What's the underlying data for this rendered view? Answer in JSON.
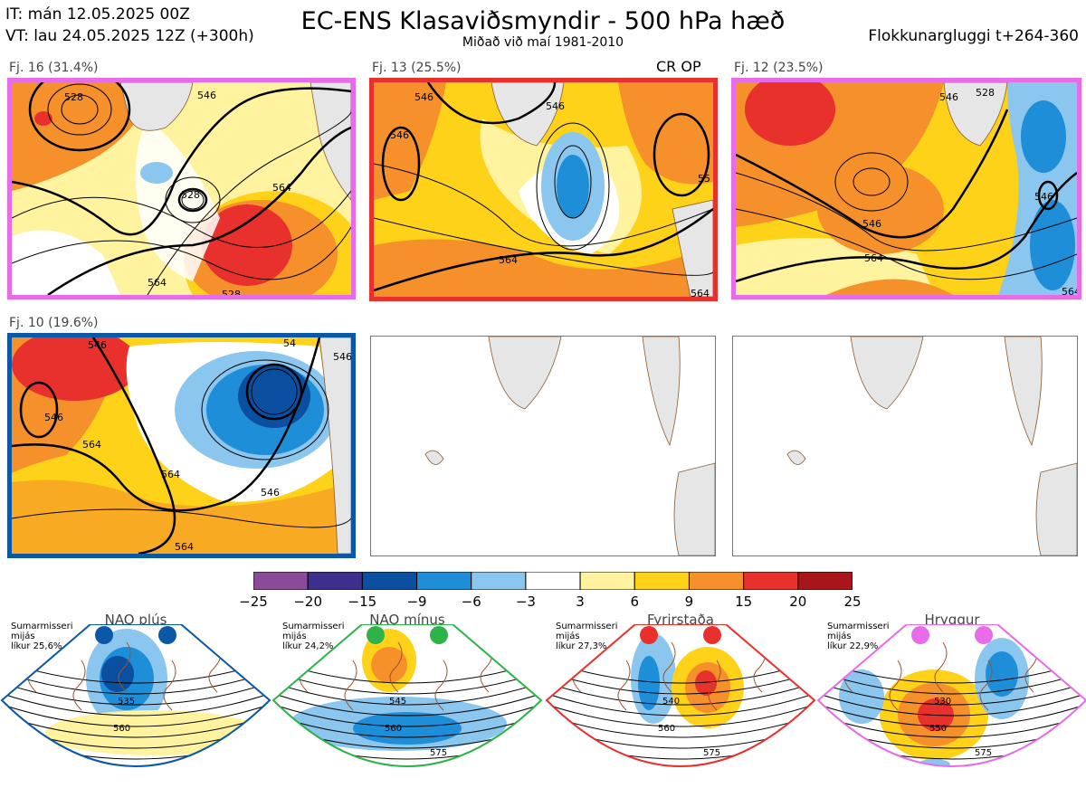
{
  "header": {
    "it": "IT: mán 12.05.2025 00Z",
    "vt": "VT: lau 24.05.2025 12Z  (+300h)",
    "title": "EC-ENS Klasaviðsmyndir - 500 hPa hæð",
    "subtitle": "Miðað við maí 1981-2010",
    "window": "Flokkunargluggi t+264-360"
  },
  "panels": [
    {
      "label": "Fj. 16 (31.4%)",
      "border": "#e86be8",
      "contours": [
        "528",
        "546",
        "528",
        "564",
        "564",
        "528"
      ]
    },
    {
      "label": "Fj. 13 (25.5%)",
      "border": "#e8302c",
      "tag": "CR OP",
      "contours": [
        "546",
        "546",
        "546",
        "564",
        "55",
        "564"
      ]
    },
    {
      "label": "Fj. 12 (23.5%)",
      "border": "#e86be8",
      "contours": [
        "546",
        "528",
        "546",
        "564",
        "546",
        "564"
      ]
    },
    {
      "label": "Fj. 10 (19.6%)",
      "border": "#0a58a6",
      "contours": [
        "546",
        "546",
        "564",
        "564",
        "546",
        "54",
        "546",
        "564"
      ]
    }
  ],
  "colorbar": {
    "ticks": [
      "−25",
      "−20",
      "−15",
      "−9",
      "−6",
      "−3",
      "3",
      "6",
      "9",
      "15",
      "20",
      "25"
    ],
    "colors": [
      "#8b4a9a",
      "#3e2f8e",
      "#0a4fa0",
      "#1f8ed8",
      "#8ac6ee",
      "#ffffff",
      "#fff3a0",
      "#ffd21a",
      "#f5902a",
      "#e8302c",
      "#a8161c"
    ]
  },
  "regimes": [
    {
      "name": "NAO plús",
      "info": "Sumarmisseri\nmijás\nlíkur 25,6%",
      "color": "#0a58a6",
      "contours": [
        "535",
        "560"
      ]
    },
    {
      "name": "NAO mínus",
      "info": "Sumarmisseri\nmijás\nlíkur 24,2%",
      "color": "#2db34a",
      "contours": [
        "545",
        "560",
        "575"
      ]
    },
    {
      "name": "Fyrirstaða",
      "info": "Sumarmisseri\nmijás\nlíkur 27,3%",
      "color": "#e8302c",
      "contours": [
        "540",
        "560",
        "575"
      ]
    },
    {
      "name": "Hryggur",
      "info": "Sumarmisseri\nmijás\nlíkur 22,9%",
      "color": "#e86be8",
      "contours": [
        "530",
        "550",
        "575"
      ]
    }
  ]
}
